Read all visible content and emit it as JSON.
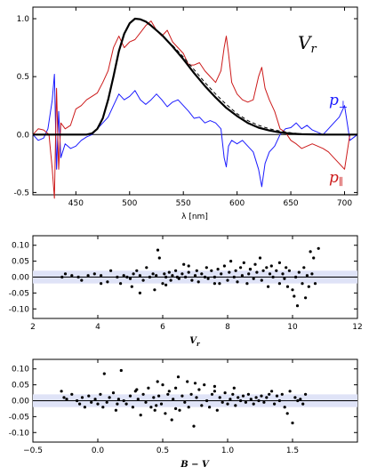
{
  "chart_data": [
    {
      "type": "line",
      "xlabel": "λ [nm]",
      "xlim": [
        410,
        712
      ],
      "ylim": [
        -0.52,
        1.1
      ],
      "xticks": [
        450,
        500,
        550,
        600,
        650,
        700
      ],
      "yticks": [
        -0.5,
        0.0,
        0.5,
        1.0
      ],
      "xtick_labels": [
        "450",
        "500",
        "550",
        "600",
        "650",
        "700"
      ],
      "ytick_labels": [
        "-0.5",
        "0.0",
        "0.5",
        "1.0"
      ],
      "annotations": [
        {
          "text": "V",
          "sub": "r",
          "color": "#000000"
        },
        {
          "text": "p",
          "sub": "⊥",
          "color": "#1a1aff"
        },
        {
          "text": "p",
          "sub": "∥",
          "color": "#cc1a1a"
        }
      ],
      "series": [
        {
          "color": "#000000",
          "style": "solid-thick",
          "x": [
            410,
            460,
            465,
            470,
            475,
            480,
            485,
            490,
            495,
            500,
            505,
            510,
            515,
            520,
            530,
            540,
            550,
            560,
            570,
            580,
            590,
            600,
            610,
            620,
            630,
            640,
            650,
            660,
            680,
            712
          ],
          "y": [
            0,
            0,
            0.01,
            0.05,
            0.14,
            0.3,
            0.5,
            0.72,
            0.87,
            0.96,
            1.0,
            0.995,
            0.975,
            0.94,
            0.86,
            0.76,
            0.65,
            0.53,
            0.42,
            0.32,
            0.23,
            0.16,
            0.1,
            0.06,
            0.035,
            0.018,
            0.008,
            0.003,
            0,
            0
          ]
        },
        {
          "color": "#000000",
          "style": "dashed",
          "x": [
            540,
            550,
            560,
            570,
            580,
            590,
            600,
            610,
            620,
            630,
            640,
            650,
            660,
            670
          ],
          "y": [
            0.77,
            0.67,
            0.56,
            0.45,
            0.35,
            0.26,
            0.18,
            0.12,
            0.08,
            0.05,
            0.03,
            0.015,
            0.006,
            0
          ]
        },
        {
          "color": "#1a1aff",
          "style": "solid",
          "x": [
            410,
            415,
            420,
            424,
            428,
            430,
            432,
            434,
            436,
            440,
            445,
            450,
            455,
            460,
            465,
            470,
            475,
            480,
            485,
            490,
            495,
            500,
            505,
            510,
            515,
            520,
            525,
            530,
            535,
            540,
            545,
            550,
            555,
            560,
            565,
            570,
            575,
            580,
            585,
            588,
            590,
            592,
            595,
            600,
            605,
            610,
            615,
            620,
            623,
            626,
            630,
            635,
            640,
            645,
            650,
            655,
            660,
            665,
            670,
            675,
            680,
            685,
            690,
            695,
            700,
            705,
            712
          ],
          "y": [
            0,
            -0.05,
            -0.03,
            0.05,
            0.3,
            0.52,
            -0.3,
            0.2,
            -0.2,
            -0.08,
            -0.12,
            -0.1,
            -0.05,
            -0.02,
            0,
            0.05,
            0.1,
            0.15,
            0.25,
            0.35,
            0.3,
            0.33,
            0.38,
            0.3,
            0.26,
            0.3,
            0.35,
            0.3,
            0.24,
            0.28,
            0.3,
            0.25,
            0.2,
            0.14,
            0.15,
            0.1,
            0.12,
            0.1,
            0.05,
            -0.2,
            -0.28,
            -0.1,
            -0.05,
            -0.08,
            -0.05,
            -0.1,
            -0.15,
            -0.3,
            -0.45,
            -0.25,
            -0.15,
            -0.1,
            0,
            0.05,
            0.06,
            0.1,
            0.05,
            0.08,
            0.04,
            0.02,
            0,
            0.05,
            0.1,
            0.15,
            0.25,
            -0.05,
            0
          ]
        },
        {
          "color": "#cc1a1a",
          "style": "solid",
          "x": [
            410,
            415,
            420,
            425,
            428,
            430,
            432,
            434,
            436,
            440,
            445,
            450,
            455,
            460,
            465,
            470,
            475,
            480,
            485,
            490,
            495,
            500,
            505,
            510,
            515,
            520,
            525,
            530,
            535,
            540,
            545,
            550,
            555,
            560,
            565,
            570,
            575,
            580,
            585,
            588,
            590,
            592,
            595,
            600,
            605,
            610,
            615,
            620,
            623,
            626,
            630,
            635,
            640,
            645,
            650,
            655,
            660,
            665,
            670,
            675,
            680,
            685,
            690,
            695,
            700,
            705,
            712
          ],
          "y": [
            0,
            0.05,
            0.04,
            0,
            -0.3,
            -0.55,
            0.4,
            -0.3,
            0.1,
            0.05,
            0.08,
            0.22,
            0.25,
            0.3,
            0.33,
            0.36,
            0.45,
            0.55,
            0.75,
            0.85,
            0.75,
            0.8,
            0.82,
            0.88,
            0.94,
            0.98,
            0.9,
            0.85,
            0.9,
            0.8,
            0.75,
            0.7,
            0.6,
            0.6,
            0.62,
            0.55,
            0.5,
            0.45,
            0.55,
            0.75,
            0.85,
            0.7,
            0.45,
            0.35,
            0.3,
            0.28,
            0.3,
            0.5,
            0.58,
            0.4,
            0.3,
            0.2,
            0.05,
            0.02,
            -0.05,
            -0.08,
            -0.12,
            -0.1,
            -0.08,
            -0.1,
            -0.12,
            -0.15,
            -0.2,
            -0.25,
            -0.3,
            0,
            0
          ]
        }
      ]
    },
    {
      "type": "scatter",
      "xlabel": "V",
      "xlabel_sub": "r",
      "xlim": [
        2,
        12
      ],
      "ylim": [
        -0.13,
        0.13
      ],
      "xticks": [
        2,
        4,
        6,
        8,
        10,
        12
      ],
      "yticks": [
        -0.1,
        -0.05,
        0.0,
        0.05,
        0.1
      ],
      "xtick_labels": [
        "2",
        "4",
        "6",
        "8",
        "10",
        "12"
      ],
      "ytick_labels": [
        "-0.10",
        "-0.05",
        "0.00",
        "0.05",
        "0.10"
      ],
      "band": [
        -0.02,
        0.02
      ],
      "points": [
        [
          2.9,
          0.0
        ],
        [
          3.0,
          0.01
        ],
        [
          3.2,
          0.005
        ],
        [
          3.4,
          0.0
        ],
        [
          3.5,
          -0.01
        ],
        [
          3.7,
          0.005
        ],
        [
          3.9,
          0.01
        ],
        [
          4.1,
          0.005
        ],
        [
          4.3,
          -0.015
        ],
        [
          4.4,
          0.02
        ],
        [
          4.6,
          0.0
        ],
        [
          4.7,
          -0.02
        ],
        [
          4.8,
          0.005
        ],
        [
          4.9,
          0.0
        ],
        [
          5.0,
          -0.005
        ],
        [
          5.05,
          -0.03
        ],
        [
          5.1,
          0.01
        ],
        [
          5.2,
          0.02
        ],
        [
          5.3,
          0.005
        ],
        [
          5.4,
          -0.01
        ],
        [
          5.5,
          0.03
        ],
        [
          5.6,
          0.0
        ],
        [
          5.7,
          0.01
        ],
        [
          5.75,
          -0.04
        ],
        [
          5.8,
          0.005
        ],
        [
          5.85,
          0.085
        ],
        [
          5.9,
          0.06
        ],
        [
          6.0,
          -0.02
        ],
        [
          6.05,
          0.01
        ],
        [
          6.1,
          0.0
        ],
        [
          6.2,
          0.015
        ],
        [
          6.25,
          -0.01
        ],
        [
          6.3,
          0.005
        ],
        [
          6.4,
          0.02
        ],
        [
          6.45,
          0.0
        ],
        [
          6.5,
          -0.005
        ],
        [
          6.6,
          0.01
        ],
        [
          6.65,
          0.04
        ],
        [
          6.7,
          0.0
        ],
        [
          6.8,
          0.015
        ],
        [
          6.9,
          -0.01
        ],
        [
          7.0,
          0.005
        ],
        [
          7.05,
          0.02
        ],
        [
          7.1,
          -0.015
        ],
        [
          7.2,
          0.01
        ],
        [
          7.3,
          0.0
        ],
        [
          7.35,
          0.03
        ],
        [
          7.4,
          -0.005
        ],
        [
          7.5,
          0.02
        ],
        [
          7.6,
          0.0
        ],
        [
          7.7,
          0.025
        ],
        [
          7.75,
          -0.02
        ],
        [
          7.8,
          0.01
        ],
        [
          7.9,
          0.035
        ],
        [
          8.0,
          -0.01
        ],
        [
          8.05,
          0.015
        ],
        [
          8.1,
          0.05
        ],
        [
          8.2,
          0.0
        ],
        [
          8.25,
          0.02
        ],
        [
          8.3,
          -0.015
        ],
        [
          8.4,
          0.03
        ],
        [
          8.45,
          0.005
        ],
        [
          8.5,
          0.045
        ],
        [
          8.6,
          -0.02
        ],
        [
          8.65,
          0.01
        ],
        [
          8.7,
          0.025
        ],
        [
          8.8,
          -0.005
        ],
        [
          8.85,
          0.04
        ],
        [
          8.9,
          0.015
        ],
        [
          9.0,
          0.06
        ],
        [
          9.05,
          -0.01
        ],
        [
          9.1,
          0.02
        ],
        [
          9.2,
          0.03
        ],
        [
          9.25,
          -0.03
        ],
        [
          9.3,
          0.01
        ],
        [
          9.35,
          0.035
        ],
        [
          9.4,
          0.0
        ],
        [
          9.5,
          0.02
        ],
        [
          9.6,
          -0.02
        ],
        [
          9.7,
          0.01
        ],
        [
          9.75,
          -0.005
        ],
        [
          9.8,
          0.03
        ],
        [
          9.85,
          -0.03
        ],
        [
          9.9,
          0.02
        ],
        [
          10.0,
          -0.04
        ],
        [
          10.05,
          -0.06
        ],
        [
          10.1,
          0.0
        ],
        [
          10.15,
          -0.09
        ],
        [
          10.2,
          0.015
        ],
        [
          10.3,
          -0.02
        ],
        [
          10.35,
          0.03
        ],
        [
          10.4,
          -0.065
        ],
        [
          10.45,
          0.005
        ],
        [
          10.5,
          -0.03
        ],
        [
          10.55,
          0.08
        ],
        [
          10.6,
          0.01
        ],
        [
          10.65,
          0.06
        ],
        [
          10.7,
          -0.02
        ],
        [
          10.8,
          0.09
        ],
        [
          5.3,
          -0.05
        ],
        [
          6.8,
          0.035
        ],
        [
          7.6,
          -0.02
        ],
        [
          8.7,
          0.025
        ],
        [
          9.6,
          0.045
        ],
        [
          6.1,
          -0.025
        ],
        [
          4.1,
          -0.02
        ]
      ]
    },
    {
      "type": "scatter",
      "xlabel": "B − V",
      "xlim": [
        -0.5,
        2.0
      ],
      "ylim": [
        -0.13,
        0.13
      ],
      "xticks": [
        -0.5,
        0.0,
        0.5,
        1.0,
        1.5
      ],
      "yticks": [
        -0.1,
        -0.05,
        0.0,
        0.05,
        0.1
      ],
      "xtick_labels": [
        "−0.5",
        "0.0",
        "0.5",
        "1.0",
        "1.5"
      ],
      "ytick_labels": [
        "-0.10",
        "-0.05",
        "0.00",
        "0.05",
        "0.10"
      ],
      "band": [
        -0.02,
        0.02
      ],
      "points": [
        [
          -0.28,
          0.03
        ],
        [
          -0.26,
          0.01
        ],
        [
          -0.24,
          0.005
        ],
        [
          -0.2,
          0.02
        ],
        [
          -0.16,
          0.0
        ],
        [
          -0.14,
          -0.01
        ],
        [
          -0.12,
          0.01
        ],
        [
          -0.1,
          -0.02
        ],
        [
          -0.07,
          0.015
        ],
        [
          -0.05,
          -0.005
        ],
        [
          -0.02,
          0.005
        ],
        [
          0.0,
          -0.01
        ],
        [
          0.02,
          0.02
        ],
        [
          0.04,
          -0.02
        ],
        [
          0.05,
          0.085
        ],
        [
          0.07,
          -0.005
        ],
        [
          0.09,
          0.01
        ],
        [
          0.12,
          0.025
        ],
        [
          0.14,
          -0.03
        ],
        [
          0.16,
          0.005
        ],
        [
          0.18,
          0.095
        ],
        [
          0.2,
          0.0
        ],
        [
          0.22,
          -0.01
        ],
        [
          0.25,
          0.015
        ],
        [
          0.27,
          -0.02
        ],
        [
          0.29,
          0.03
        ],
        [
          0.31,
          0.005
        ],
        [
          0.33,
          -0.045
        ],
        [
          0.35,
          0.02
        ],
        [
          0.37,
          -0.005
        ],
        [
          0.39,
          0.04
        ],
        [
          0.41,
          -0.02
        ],
        [
          0.43,
          0.01
        ],
        [
          0.44,
          -0.03
        ],
        [
          0.46,
          0.06
        ],
        [
          0.47,
          0.015
        ],
        [
          0.49,
          -0.01
        ],
        [
          0.5,
          0.05
        ],
        [
          0.52,
          -0.04
        ],
        [
          0.54,
          0.02
        ],
        [
          0.55,
          0.03
        ],
        [
          0.57,
          -0.06
        ],
        [
          0.58,
          0.005
        ],
        [
          0.6,
          0.04
        ],
        [
          0.62,
          0.075
        ],
        [
          0.63,
          -0.03
        ],
        [
          0.65,
          0.015
        ],
        [
          0.67,
          -0.005
        ],
        [
          0.69,
          0.06
        ],
        [
          0.7,
          -0.02
        ],
        [
          0.72,
          0.02
        ],
        [
          0.74,
          -0.08
        ],
        [
          0.76,
          0.01
        ],
        [
          0.78,
          0.035
        ],
        [
          0.8,
          -0.015
        ],
        [
          0.82,
          0.05
        ],
        [
          0.84,
          0.0
        ],
        [
          0.86,
          -0.02
        ],
        [
          0.88,
          0.02
        ],
        [
          0.9,
          0.03
        ],
        [
          0.92,
          -0.03
        ],
        [
          0.94,
          0.01
        ],
        [
          0.96,
          -0.005
        ],
        [
          0.98,
          0.025
        ],
        [
          1.0,
          -0.01
        ],
        [
          1.02,
          0.005
        ],
        [
          1.04,
          0.02
        ],
        [
          1.06,
          -0.015
        ],
        [
          1.08,
          0.01
        ],
        [
          1.1,
          0.0
        ],
        [
          1.12,
          0.015
        ],
        [
          1.14,
          -0.005
        ],
        [
          1.16,
          0.02
        ],
        [
          1.18,
          0.005
        ],
        [
          1.2,
          -0.01
        ],
        [
          1.22,
          0.01
        ],
        [
          1.24,
          0.0
        ],
        [
          1.26,
          0.015
        ],
        [
          1.28,
          -0.005
        ],
        [
          1.3,
          0.01
        ],
        [
          1.32,
          0.02
        ],
        [
          1.34,
          0.03
        ],
        [
          1.36,
          -0.01
        ],
        [
          1.38,
          0.015
        ],
        [
          1.4,
          0.0
        ],
        [
          1.42,
          0.02
        ],
        [
          1.44,
          -0.02
        ],
        [
          1.46,
          -0.04
        ],
        [
          1.48,
          0.03
        ],
        [
          1.5,
          -0.07
        ],
        [
          1.52,
          0.01
        ],
        [
          1.54,
          0.0
        ],
        [
          1.56,
          0.005
        ],
        [
          1.58,
          -0.01
        ],
        [
          1.6,
          0.02
        ],
        [
          0.3,
          0.035
        ],
        [
          0.6,
          -0.025
        ],
        [
          0.9,
          0.045
        ],
        [
          0.45,
          -0.015
        ],
        [
          0.75,
          0.055
        ],
        [
          1.05,
          0.04
        ],
        [
          0.15,
          -0.01
        ]
      ]
    }
  ]
}
